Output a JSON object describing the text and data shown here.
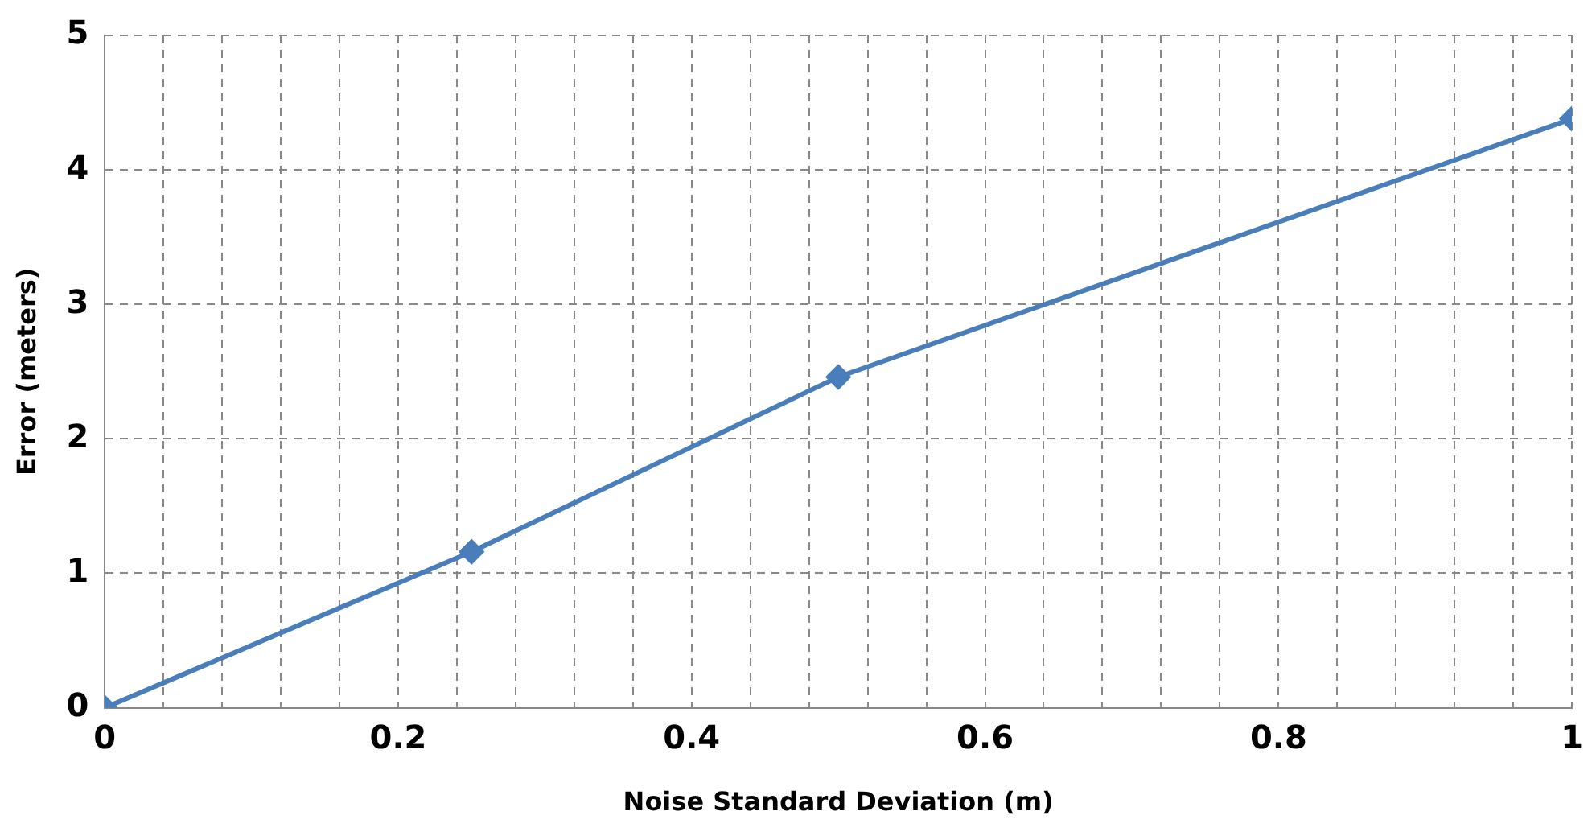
{
  "chart_data": {
    "type": "line",
    "xlabel": "Noise Standard Deviation (m)",
    "ylabel": "Error (meters)",
    "x": [
      0,
      0.25,
      0.5,
      1
    ],
    "series": [
      {
        "color": "#4a7ebb",
        "values": [
          0,
          1.16,
          2.46,
          4.38
        ]
      }
    ],
    "xlim": [
      0,
      1
    ],
    "ylim": [
      0,
      5
    ],
    "xticks": [
      0,
      {
        "value": 0.04,
        "label": null
      },
      {
        "value": 0.08,
        "label": null
      },
      {
        "value": 0.12,
        "label": null
      },
      {
        "value": 0.16,
        "label": null
      },
      0.2,
      {
        "value": 0.24,
        "label": null
      },
      {
        "value": 0.28,
        "label": null
      },
      {
        "value": 0.32,
        "label": null
      },
      {
        "value": 0.36,
        "label": null
      },
      0.4,
      {
        "value": 0.44,
        "label": null
      },
      {
        "value": 0.48,
        "label": null
      },
      {
        "value": 0.52,
        "label": null
      },
      {
        "value": 0.56,
        "label": null
      },
      0.6,
      {
        "value": 0.64,
        "label": null
      },
      {
        "value": 0.68,
        "label": null
      },
      {
        "value": 0.72,
        "label": null
      },
      {
        "value": 0.76,
        "label": null
      },
      0.8,
      {
        "value": 0.84,
        "label": null
      },
      {
        "value": 0.88,
        "label": null
      },
      {
        "value": 0.92,
        "label": null
      },
      {
        "value": 0.96,
        "label": null
      },
      1
    ],
    "yticks": [
      0,
      1,
      2,
      3,
      4,
      5
    ],
    "grid": true,
    "marker": "diamond",
    "line_style": "solid",
    "legend": false
  }
}
